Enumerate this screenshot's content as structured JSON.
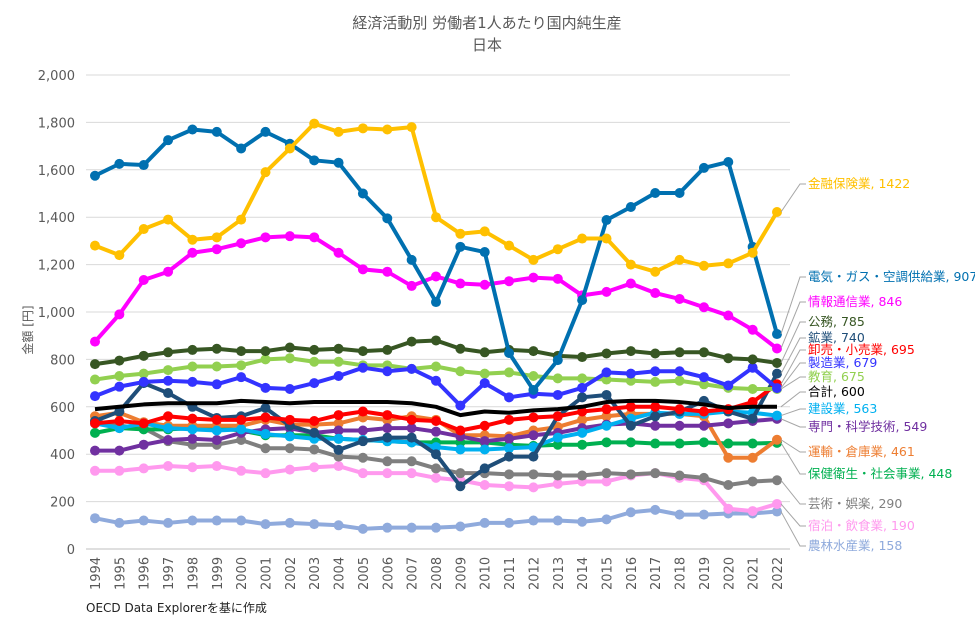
{
  "chart_data": {
    "type": "line",
    "title": "経済活動別 労働者1人あたり国内純生産",
    "subtitle": "日本",
    "xlabel": "",
    "ylabel": "金額 [円]",
    "ylim": [
      0,
      2000
    ],
    "yticks": [
      "0",
      "200",
      "400",
      "600",
      "800",
      "1,000",
      "1,200",
      "1,400",
      "1,600",
      "1,800",
      "2,000"
    ],
    "ytick_values": [
      0,
      200,
      400,
      600,
      800,
      1000,
      1200,
      1400,
      1600,
      1800,
      2000
    ],
    "grid": true,
    "legend": "right (direct labels)",
    "x": [
      "1994",
      "1995",
      "1996",
      "1997",
      "1998",
      "1999",
      "2000",
      "2001",
      "2002",
      "2003",
      "2004",
      "2005",
      "2006",
      "2007",
      "2008",
      "2009",
      "2010",
      "2011",
      "2012",
      "2013",
      "2014",
      "2015",
      "2016",
      "2017",
      "2018",
      "2019",
      "2020",
      "2021",
      "2022"
    ],
    "series": [
      {
        "name": "農林水産業",
        "label": "農林水産業, 158",
        "color": "#8faadc",
        "values": [
          130,
          110,
          120,
          110,
          120,
          120,
          120,
          105,
          110,
          105,
          100,
          85,
          90,
          90,
          90,
          95,
          110,
          110,
          120,
          120,
          115,
          125,
          155,
          165,
          145,
          145,
          150,
          150,
          158
        ]
      },
      {
        "name": "宿泊・飲食業",
        "label": "宿泊・飲食業, 190",
        "color": "#ff99ee",
        "values": [
          330,
          330,
          340,
          350,
          345,
          350,
          330,
          320,
          335,
          345,
          350,
          320,
          320,
          320,
          300,
          290,
          270,
          265,
          260,
          275,
          285,
          285,
          310,
          320,
          300,
          290,
          170,
          160,
          190
        ]
      },
      {
        "name": "芸術・娯楽",
        "label": "芸術・娯楽, 290",
        "color": "#7f7f7f",
        "values": [
          540,
          520,
          510,
          455,
          440,
          440,
          460,
          425,
          425,
          420,
          390,
          385,
          370,
          370,
          340,
          320,
          320,
          315,
          315,
          310,
          310,
          320,
          315,
          320,
          310,
          300,
          270,
          285,
          290
        ]
      },
      {
        "name": "保健衛生・社会事業",
        "label": "保健衛生・社会事業, 448",
        "color": "#00b050",
        "values": [
          490,
          510,
          505,
          505,
          510,
          510,
          500,
          480,
          480,
          480,
          465,
          460,
          455,
          450,
          450,
          450,
          450,
          440,
          435,
          440,
          440,
          450,
          450,
          445,
          445,
          450,
          445,
          445,
          448
        ]
      },
      {
        "name": "運輸・倉庫業",
        "label": "運輸・倉庫業, 461",
        "color": "#ed7d31",
        "values": [
          560,
          575,
          535,
          520,
          520,
          520,
          520,
          545,
          525,
          525,
          530,
          555,
          545,
          560,
          545,
          480,
          480,
          475,
          500,
          515,
          545,
          560,
          570,
          570,
          570,
          560,
          385,
          385,
          461
        ]
      },
      {
        "name": "専門・科学技術",
        "label": "専門・科学技術, 549",
        "color": "#7030a0",
        "values": [
          415,
          415,
          440,
          460,
          465,
          460,
          490,
          505,
          510,
          490,
          500,
          500,
          510,
          510,
          495,
          475,
          455,
          465,
          480,
          490,
          510,
          525,
          530,
          520,
          520,
          520,
          530,
          540,
          549
        ]
      },
      {
        "name": "建設業",
        "label": "建設業, 563",
        "color": "#00b0f0",
        "values": [
          530,
          510,
          530,
          510,
          505,
          500,
          505,
          485,
          475,
          465,
          465,
          460,
          455,
          450,
          430,
          420,
          420,
          425,
          430,
          470,
          490,
          520,
          550,
          575,
          570,
          570,
          580,
          575,
          563
        ]
      },
      {
        "name": "鉱業",
        "label": "鉱業, 740",
        "color": "#1f4e79",
        "values": [
          540,
          580,
          700,
          658,
          600,
          553,
          560,
          595,
          520,
          490,
          418,
          455,
          470,
          470,
          400,
          265,
          340,
          390,
          390,
          560,
          640,
          650,
          520,
          560,
          580,
          625,
          580,
          550,
          740
        ]
      },
      {
        "name": "卸売・小売業",
        "label": "卸売・小売業, 695",
        "color": "#ff0000",
        "values": [
          530,
          540,
          530,
          560,
          550,
          545,
          545,
          555,
          545,
          540,
          565,
          580,
          565,
          545,
          540,
          500,
          520,
          545,
          555,
          560,
          580,
          590,
          600,
          600,
          590,
          580,
          590,
          620,
          695
        ]
      },
      {
        "name": "教育",
        "label": "教育, 675",
        "color": "#92d050",
        "values": [
          715,
          730,
          740,
          755,
          770,
          770,
          775,
          800,
          805,
          790,
          790,
          775,
          775,
          760,
          770,
          750,
          740,
          745,
          730,
          720,
          720,
          715,
          710,
          705,
          710,
          695,
          680,
          675,
          675
        ]
      },
      {
        "name": "製造業",
        "label": "製造業, 679",
        "color": "#3333ff",
        "values": [
          645,
          685,
          705,
          710,
          705,
          695,
          725,
          680,
          675,
          700,
          730,
          765,
          750,
          760,
          710,
          605,
          700,
          640,
          655,
          650,
          680,
          745,
          740,
          750,
          750,
          725,
          690,
          765,
          679
        ]
      },
      {
        "name": "公務",
        "label": "公務, 785",
        "color": "#375623",
        "values": [
          780,
          795,
          815,
          830,
          840,
          845,
          835,
          835,
          850,
          840,
          845,
          835,
          840,
          875,
          880,
          845,
          830,
          840,
          835,
          815,
          810,
          825,
          835,
          825,
          830,
          830,
          805,
          800,
          785
        ]
      },
      {
        "name": "情報通信業",
        "label": "情報通信業, 846",
        "color": "#ff00ff",
        "values": [
          875,
          990,
          1135,
          1170,
          1250,
          1265,
          1290,
          1315,
          1320,
          1315,
          1250,
          1180,
          1170,
          1110,
          1150,
          1120,
          1115,
          1130,
          1145,
          1140,
          1070,
          1085,
          1120,
          1080,
          1055,
          1020,
          985,
          925,
          846
        ]
      },
      {
        "name": "電気・ガス・空調供給業",
        "label": "電気・ガス・空調供給業, 907",
        "color": "#0070b0",
        "values": [
          1575,
          1625,
          1620,
          1725,
          1770,
          1760,
          1690,
          1760,
          1710,
          1640,
          1630,
          1500,
          1395,
          1220,
          1042,
          1275,
          1253,
          827,
          671,
          797,
          1050,
          1388,
          1443,
          1502,
          1502,
          1608,
          1633,
          1275,
          907
        ]
      },
      {
        "name": "金融保険業",
        "label": "金融保険業, 1422",
        "color": "#ffc000",
        "values": [
          1280,
          1240,
          1350,
          1390,
          1305,
          1315,
          1390,
          1590,
          1690,
          1795,
          1760,
          1775,
          1770,
          1780,
          1400,
          1330,
          1340,
          1280,
          1220,
          1265,
          1310,
          1310,
          1200,
          1170,
          1220,
          1195,
          1205,
          1250,
          1422
        ]
      },
      {
        "name": "合計",
        "label": "合計, 600",
        "color": "#000000",
        "values": [
          590,
          600,
          610,
          615,
          615,
          615,
          625,
          620,
          615,
          620,
          620,
          620,
          620,
          615,
          600,
          565,
          580,
          575,
          585,
          590,
          600,
          620,
          625,
          625,
          620,
          610,
          595,
          600,
          600
        ]
      }
    ]
  },
  "footnote": "OECD Data Explorerを基に作成"
}
